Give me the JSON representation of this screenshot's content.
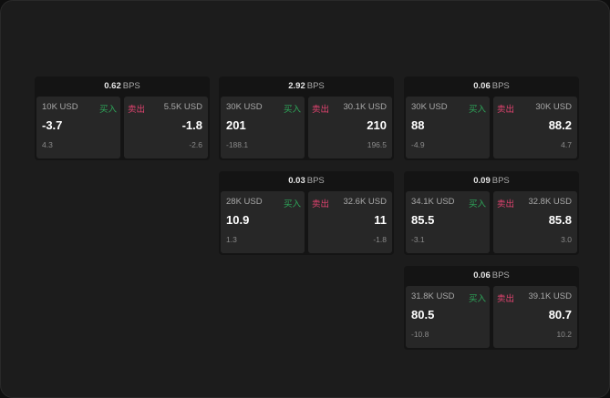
{
  "unit": "BPS",
  "buy_label": "买入",
  "sell_label": "卖出",
  "colors": {
    "buy": "#2ea85a",
    "sell": "#e0436f"
  },
  "cards": [
    {
      "spread": "0.62",
      "buy": {
        "size": "10K USD",
        "price": "-3.7",
        "change": "4.3"
      },
      "sell": {
        "size": "5.5K USD",
        "price": "-1.8",
        "change": "-2.6"
      }
    },
    {
      "spread": "2.92",
      "buy": {
        "size": "30K USD",
        "price": "201",
        "change": "-188.1"
      },
      "sell": {
        "size": "30.1K USD",
        "price": "210",
        "change": "196.5"
      }
    },
    {
      "spread": "0.06",
      "buy": {
        "size": "30K USD",
        "price": "88",
        "change": "-4.9"
      },
      "sell": {
        "size": "30K USD",
        "price": "88.2",
        "change": "4.7"
      }
    },
    {
      "spread": "0.03",
      "buy": {
        "size": "28K USD",
        "price": "10.9",
        "change": "1.3"
      },
      "sell": {
        "size": "32.6K USD",
        "price": "11",
        "change": "-1.8"
      }
    },
    {
      "spread": "0.09",
      "buy": {
        "size": "34.1K USD",
        "price": "85.5",
        "change": "-3.1"
      },
      "sell": {
        "size": "32.8K USD",
        "price": "85.8",
        "change": "3.0"
      }
    },
    {
      "spread": "0.06",
      "buy": {
        "size": "31.8K USD",
        "price": "80.5",
        "change": "-10.8"
      },
      "sell": {
        "size": "39.1K USD",
        "price": "80.7",
        "change": "10.2"
      }
    }
  ]
}
